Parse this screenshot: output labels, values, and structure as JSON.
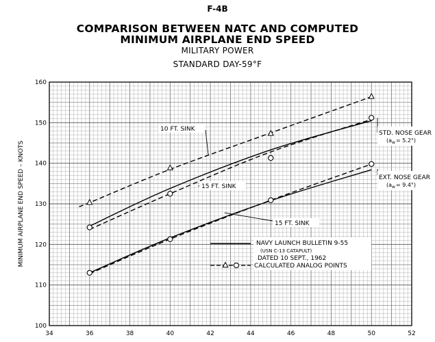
{
  "header": {
    "code": "F-4B",
    "title_line1": "COMPARISON BETWEEN NATC AND COMPUTED",
    "title_line2": "MINIMUM AIRPLANE END SPEED",
    "subtitle1": "MILITARY POWER",
    "subtitle2": "STANDARD DAY-59°F"
  },
  "chart_data": {
    "type": "line",
    "ylabel": "MINIMUM AIRPLANE END SPEED – KNOTS",
    "xlabel": "",
    "xlim": [
      34,
      52
    ],
    "ylim": [
      100,
      160
    ],
    "x_ticks": [
      "34",
      "36",
      "38",
      "40",
      "42",
      "44",
      "46",
      "48",
      "50",
      "52"
    ],
    "y_ticks": [
      "100",
      "110",
      "120",
      "130",
      "140",
      "150",
      "160"
    ],
    "grid": true,
    "series": [
      {
        "name": "STD. NOSE GEAR",
        "style": "solid",
        "x": [
          36,
          40,
          45,
          50
        ],
        "y": [
          124.5,
          133.8,
          143.3,
          150.5
        ]
      },
      {
        "name": "EXT. NOSE GEAR",
        "style": "solid",
        "x": [
          36,
          40,
          45,
          50
        ],
        "y": [
          113.0,
          121.6,
          130.8,
          138.4
        ]
      },
      {
        "name": "10 FT. SINK",
        "style": "dashed",
        "x": [
          35.5,
          36,
          40,
          45,
          50
        ],
        "y": [
          129.4,
          130.3,
          138.5,
          147.5,
          156.4
        ]
      },
      {
        "name": "15 FT. SINK",
        "style": "dashed",
        "x": [
          36,
          40,
          45,
          50
        ],
        "y": [
          123.7,
          132.5,
          142.8,
          150.8
        ]
      },
      {
        "name": "15 FT. SINK",
        "style": "dashed",
        "x": [
          36,
          40,
          45,
          50
        ],
        "y": [
          112.8,
          121.3,
          130.9,
          139.8
        ]
      }
    ],
    "markers": {
      "triangle": [
        [
          36,
          130.3
        ],
        [
          40,
          138.8
        ],
        [
          45,
          147.3
        ],
        [
          50,
          156.4
        ]
      ],
      "circle": [
        [
          36,
          124.2
        ],
        [
          40,
          132.5
        ],
        [
          45,
          141.3
        ],
        [
          50,
          151.2
        ],
        [
          36,
          113.0
        ],
        [
          40,
          121.3
        ],
        [
          45,
          130.9
        ],
        [
          50,
          139.8
        ]
      ]
    },
    "annotations": {
      "std_gear_label": "STD. NOSE GEAR",
      "std_gear_alpha": "(a",
      "std_gear_alpha_sub": "w",
      "std_gear_alpha_val": "= 5.2°)",
      "ext_gear_label": "EXT. NOSE GEAR",
      "ext_gear_alpha": "(a",
      "ext_gear_alpha_sub": "w",
      "ext_gear_alpha_val": "= 9.4°)",
      "sink10": "10 FT. SINK",
      "sink15_upper": "15 FT. SINK",
      "sink15_lower": "15 FT. SINK"
    },
    "legend": {
      "line1": "NAVY LAUNCH BULLETIN 9-55",
      "line2": "(USN C-13 CATAPULT)",
      "line3": "DATED 10 SEPT., 1962",
      "line4": "CALCULATED ANALOG POINTS"
    }
  }
}
